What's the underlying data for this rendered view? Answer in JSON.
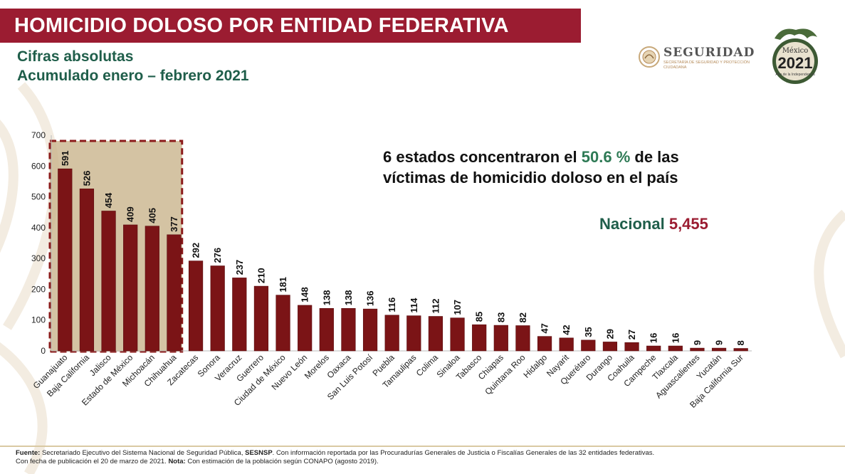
{
  "header": {
    "title": "HOMICIDIO DOLOSO POR ENTIDAD FEDERATIVA",
    "subtitle1": "Cifras absolutas",
    "subtitle2": "Acumulado enero – febrero 2021"
  },
  "logos": {
    "seguridad": "SEGURIDAD",
    "seguridad_sub": "SECRETARÍA DE SEGURIDAD Y PROTECCIÓN CIUDADANA",
    "mexico": "México",
    "year": "2021",
    "year_sub": "Año de la Independencia"
  },
  "callout": {
    "line1_pre": "6 estados concentraron el ",
    "line1_pct": "50.6 %",
    "line1_post": " de las",
    "line2": "víctimas de homicidio doloso en el país"
  },
  "nacional": {
    "label": "Nacional",
    "value": "5,455"
  },
  "footer": {
    "fuente_label": "Fuente:",
    "fuente_text": " Secretariado Ejecutivo del Sistema Nacional de Seguridad Pública, ",
    "sesnsp": "SESNSP",
    "fuente_rest": ". Con información reportada por las Procuradurías Generales de Justicia o Fiscalías Generales de las 32 entidades federativas.",
    "line2_pre": "Con fecha de publicación el 20 de marzo de 2021. ",
    "nota_label": "Nota:",
    "nota_text": " Con estimación de la población según CONAPO (agosto 2019)."
  },
  "colors": {
    "bar": "#7b1416",
    "bar_edge": "#5a0c0e",
    "highlight_fill": "#c9b48c",
    "highlight_border": "#8b1a1a",
    "title_bg": "#9b1c31",
    "green": "#1f5e4a"
  },
  "chart_data": {
    "type": "bar",
    "title": "HOMICIDIO DOLOSO POR ENTIDAD FEDERATIVA",
    "xlabel": "",
    "ylabel": "",
    "ylim": [
      0,
      700
    ],
    "yticks": [
      0,
      100,
      200,
      300,
      400,
      500,
      600,
      700
    ],
    "grid": false,
    "highlight_first": 6,
    "categories": [
      "Guanajuato",
      "Baja California",
      "Jalisco",
      "Estado de México",
      "Michoacán",
      "Chihuahua",
      "Zacatecas",
      "Sonora",
      "Veracruz",
      "Guerrero",
      "Ciudad de México",
      "Nuevo León",
      "Morelos",
      "Oaxaca",
      "San Luis Potosí",
      "Puebla",
      "Tamaulipas",
      "Colima",
      "Sinaloa",
      "Tabasco",
      "Chiapas",
      "Quintana Roo",
      "Hidalgo",
      "Nayarit",
      "Querétaro",
      "Durango",
      "Coahuila",
      "Campeche",
      "Tlaxcala",
      "Aguascalientes",
      "Yucatán",
      "Baja California Sur"
    ],
    "values": [
      591,
      526,
      454,
      409,
      405,
      377,
      292,
      276,
      237,
      210,
      181,
      148,
      138,
      138,
      136,
      116,
      114,
      112,
      107,
      85,
      83,
      82,
      47,
      42,
      35,
      29,
      27,
      16,
      16,
      9,
      9,
      8
    ]
  }
}
